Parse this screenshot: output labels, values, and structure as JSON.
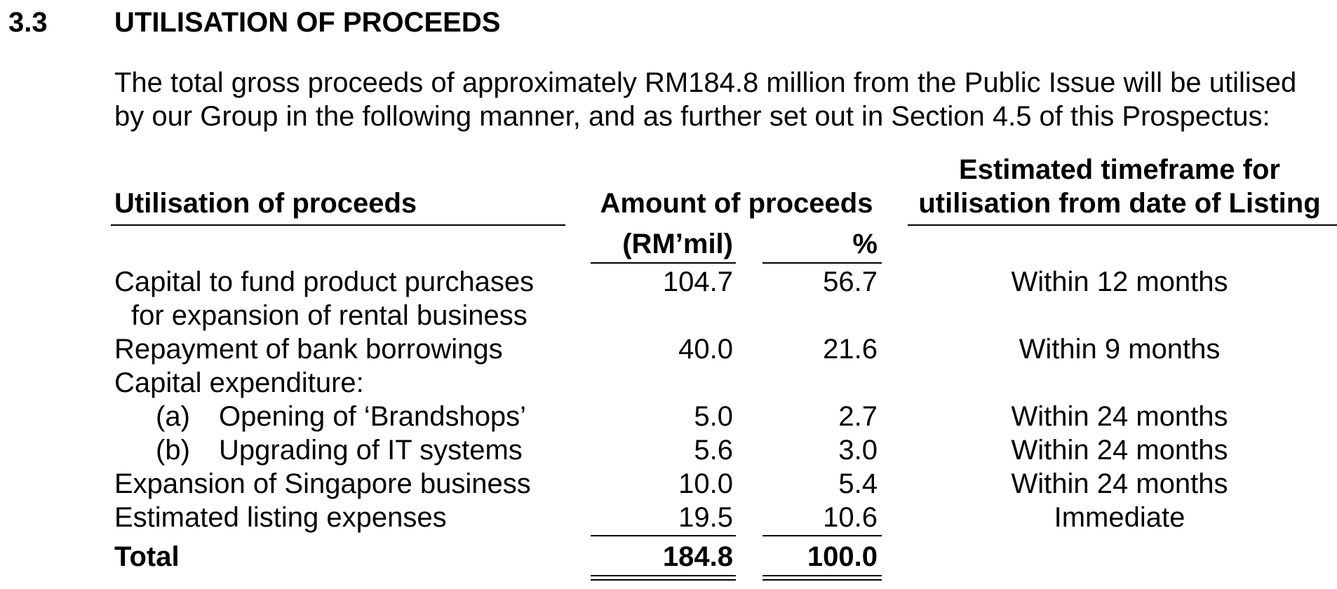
{
  "section": {
    "number": "3.3",
    "title": "UTILISATION OF PROCEEDS"
  },
  "intro": {
    "line1": "The total gross proceeds of approximately RM184.8 million from the Public Issue will be utilised",
    "line2": "by our Group in the following manner, and as further set out in Section 4.5 of this Prospectus:"
  },
  "table": {
    "headers": {
      "utilisation": "Utilisation of proceeds",
      "amount": "Amount of proceeds",
      "rm": "(RM’mil)",
      "pct": "%",
      "timeframe_line1": "Estimated timeframe for",
      "timeframe_line2": "utilisation from date of Listing"
    },
    "rows": [
      {
        "label": "Capital to fund product purchases",
        "label2": "for expansion of rental business",
        "amount": "104.7",
        "pct": "56.7",
        "timeframe": "Within 12 months"
      },
      {
        "label": "Repayment of bank borrowings",
        "amount": "40.0",
        "pct": "21.6",
        "timeframe": "Within 9 months"
      },
      {
        "label": "Capital expenditure:"
      },
      {
        "marker": "(a)",
        "label": "Opening of ‘Brandshops’",
        "amount": "5.0",
        "pct": "2.7",
        "timeframe": "Within 24 months"
      },
      {
        "marker": "(b)",
        "label": "Upgrading of IT systems",
        "amount": "5.6",
        "pct": "3.0",
        "timeframe": "Within 24 months"
      },
      {
        "label": "Expansion of Singapore business",
        "amount": "10.0",
        "pct": "5.4",
        "timeframe": "Within 24 months"
      },
      {
        "label": "Estimated listing expenses",
        "amount": "19.5",
        "pct": "10.6",
        "timeframe": "Immediate"
      }
    ],
    "total": {
      "label": "Total",
      "amount": "184.8",
      "pct": "100.0"
    }
  }
}
